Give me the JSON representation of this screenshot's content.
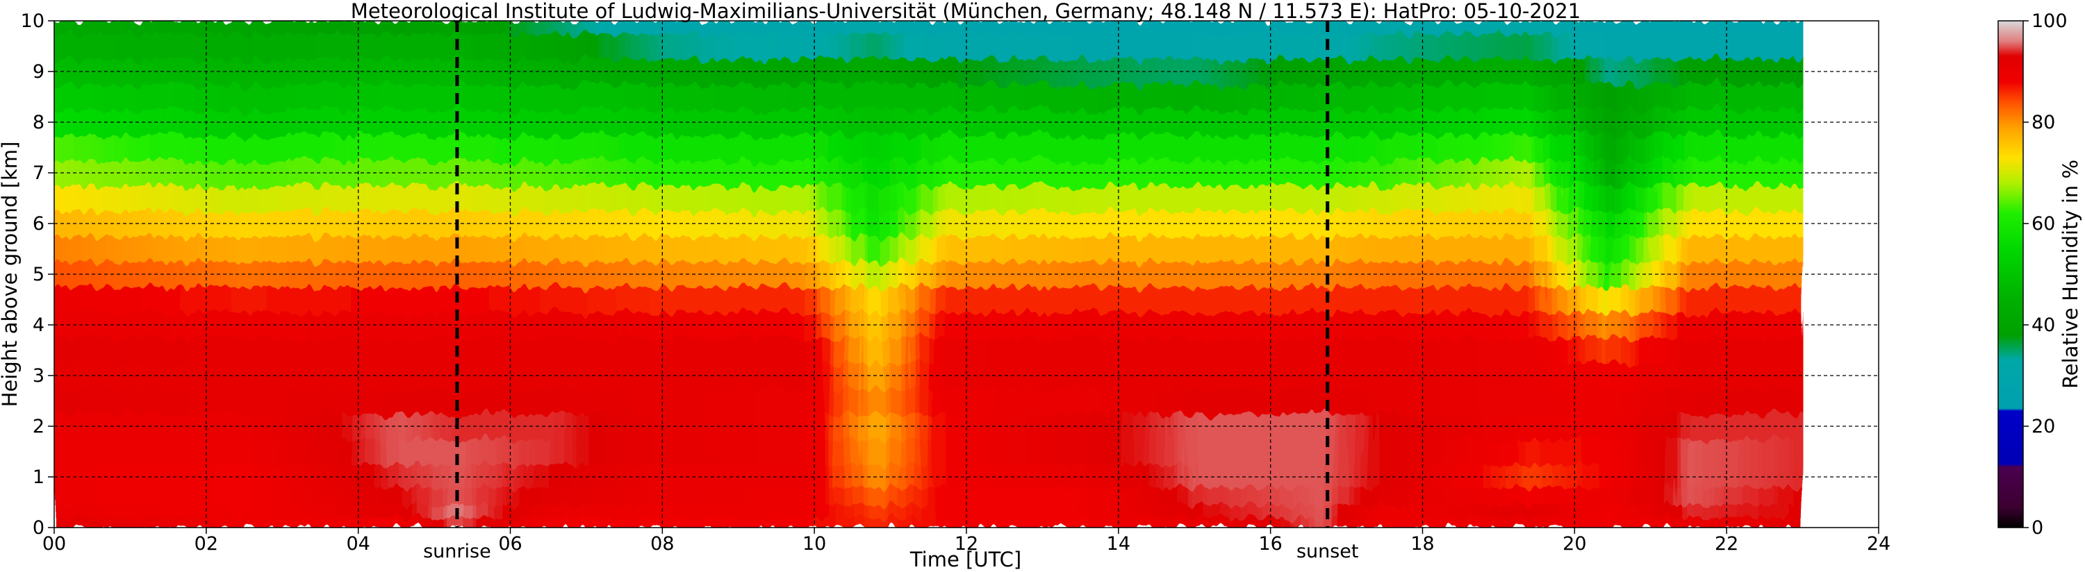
{
  "chart_data": {
    "type": "heatmap",
    "title": "Meteorological Institute of Ludwig-Maximilians-Universität (München, Germany; 48.148 N / 11.573 E):    HatPro: 05-10-2021",
    "xlabel": "Time [UTC]",
    "ylabel": "Height above ground [km]",
    "colorbar_label": "Relative Humidity in %",
    "xlim": [
      0,
      24
    ],
    "ylim": [
      0,
      10
    ],
    "clim": [
      0,
      100
    ],
    "grid": true,
    "x_ticks": [
      0,
      2,
      4,
      6,
      8,
      10,
      12,
      14,
      16,
      18,
      20,
      22,
      24
    ],
    "x_tick_labels": [
      "00",
      "02",
      "04",
      "06",
      "08",
      "10",
      "12",
      "14",
      "16",
      "18",
      "20",
      "22",
      "24"
    ],
    "y_ticks": [
      0,
      1,
      2,
      3,
      4,
      5,
      6,
      7,
      8,
      9,
      10
    ],
    "y_tick_labels": [
      "0",
      "1",
      "2",
      "3",
      "4",
      "5",
      "6",
      "7",
      "8",
      "9",
      "10"
    ],
    "colorbar_ticks": [
      0,
      20,
      40,
      60,
      80,
      100
    ],
    "colorbar_tick_labels": [
      "0",
      "20",
      "40",
      "60",
      "80",
      "100"
    ],
    "data_end_time": 23.0,
    "colormap_stops": [
      {
        "value": 0,
        "color": "#000000"
      },
      {
        "value": 4,
        "color": "#3b0030"
      },
      {
        "value": 12,
        "color": "#4b0050"
      },
      {
        "value": 12.5,
        "color": "#0000b4"
      },
      {
        "value": 23,
        "color": "#0000c8"
      },
      {
        "value": 23.5,
        "color": "#00a0b0"
      },
      {
        "value": 33,
        "color": "#00a8a8"
      },
      {
        "value": 38,
        "color": "#00a000"
      },
      {
        "value": 45,
        "color": "#00b000"
      },
      {
        "value": 55,
        "color": "#00d800"
      },
      {
        "value": 62,
        "color": "#20ee00"
      },
      {
        "value": 68,
        "color": "#b0f000"
      },
      {
        "value": 73,
        "color": "#ffe000"
      },
      {
        "value": 79,
        "color": "#ffa000"
      },
      {
        "value": 84,
        "color": "#ff5000"
      },
      {
        "value": 88,
        "color": "#f00000"
      },
      {
        "value": 93,
        "color": "#e00000"
      },
      {
        "value": 96,
        "color": "#e08080"
      },
      {
        "value": 100,
        "color": "#d8d8d8"
      }
    ],
    "height_levels_km": [
      0.1,
      0.3,
      0.6,
      1.0,
      1.5,
      2.0,
      2.5,
      3.0,
      3.5,
      4.0,
      4.5,
      5.0,
      5.5,
      6.0,
      6.5,
      7.0,
      7.5,
      8.0,
      8.5,
      9.0,
      9.5,
      10.0
    ],
    "time_nodes_utc": [
      0,
      2.5,
      4.5,
      5.3,
      6.6,
      8.0,
      9.9,
      10.8,
      11.7,
      13.5,
      15.0,
      16.7,
      17.5,
      19.4,
      20.45,
      21.5,
      23.0
    ],
    "relative_humidity_percent": [
      [
        92,
        89,
        88,
        95,
        88,
        88,
        88,
        86,
        88,
        88,
        90,
        95,
        88,
        90,
        88,
        90,
        92
      ],
      [
        90,
        88,
        92,
        96,
        90,
        89,
        89,
        85,
        88,
        88,
        93,
        95,
        89,
        92,
        88,
        94,
        93
      ],
      [
        89,
        88,
        93,
        95,
        92,
        90,
        89,
        83,
        88,
        88,
        94,
        95,
        92,
        88,
        89,
        95,
        93
      ],
      [
        89,
        88,
        94,
        95,
        93,
        90,
        90,
        80,
        88,
        90,
        95,
        95,
        93,
        85,
        88,
        95,
        94
      ],
      [
        89,
        89,
        95,
        95,
        94,
        91,
        90,
        79,
        88,
        92,
        95,
        95,
        93,
        87,
        88,
        95,
        94
      ],
      [
        90,
        90,
        95,
        94,
        94,
        91,
        90,
        78,
        88,
        92,
        95,
        95,
        93,
        89,
        89,
        94,
        94
      ],
      [
        92,
        91,
        92,
        92,
        92,
        91,
        90,
        80,
        89,
        90,
        92,
        92,
        91,
        90,
        89,
        92,
        92
      ],
      [
        91,
        91,
        91,
        91,
        91,
        91,
        91,
        78,
        90,
        91,
        91,
        91,
        91,
        90,
        88,
        91,
        91
      ],
      [
        92,
        91,
        91,
        91,
        91,
        91,
        91,
        76,
        90,
        91,
        91,
        91,
        91,
        90,
        85,
        91,
        91
      ],
      [
        90,
        89,
        90,
        90,
        90,
        89,
        88,
        75,
        88,
        89,
        89,
        89,
        89,
        88,
        80,
        89,
        89
      ],
      [
        89,
        87,
        88,
        88,
        87,
        86,
        86,
        73,
        86,
        86,
        86,
        86,
        86,
        86,
        72,
        86,
        86
      ],
      [
        84,
        82,
        83,
        83,
        82,
        81,
        80,
        68,
        80,
        81,
        81,
        81,
        82,
        82,
        62,
        81,
        81
      ],
      [
        81,
        78,
        79,
        79,
        78,
        77,
        76,
        62,
        76,
        77,
        77,
        77,
        78,
        78,
        58,
        77,
        77
      ],
      [
        77,
        74,
        75,
        75,
        74,
        73,
        72,
        58,
        72,
        73,
        73,
        73,
        74,
        75,
        55,
        73,
        73
      ],
      [
        73,
        70,
        71,
        71,
        70,
        69,
        68,
        57,
        68,
        69,
        69,
        69,
        70,
        72,
        50,
        69,
        69
      ],
      [
        67,
        64,
        65,
        65,
        64,
        62,
        62,
        55,
        62,
        62,
        62,
        62,
        63,
        68,
        45,
        62,
        62
      ],
      [
        64,
        60,
        61,
        61,
        60,
        58,
        58,
        53,
        58,
        58,
        58,
        58,
        59,
        63,
        43,
        58,
        58
      ],
      [
        56,
        52,
        53,
        53,
        52,
        51,
        51,
        49,
        51,
        51,
        51,
        51,
        52,
        55,
        40,
        51,
        51
      ],
      [
        52,
        49,
        50,
        50,
        49,
        48,
        47,
        47,
        47,
        46,
        45,
        47,
        48,
        50,
        38,
        47,
        47
      ],
      [
        48,
        46,
        47,
        47,
        44,
        42,
        40,
        42,
        38,
        36,
        35,
        40,
        42,
        44,
        34,
        38,
        38
      ],
      [
        45,
        43,
        44,
        44,
        40,
        34,
        32,
        35,
        31,
        30,
        30,
        32,
        34,
        36,
        30,
        30,
        30
      ],
      [
        42,
        40,
        38,
        40,
        35,
        30,
        29,
        31,
        28,
        28,
        28,
        29,
        30,
        32,
        28,
        28,
        28
      ]
    ],
    "annotations": [
      {
        "text": "sunrise",
        "x": 5.3
      },
      {
        "text": "sunset",
        "x": 16.75
      }
    ]
  }
}
